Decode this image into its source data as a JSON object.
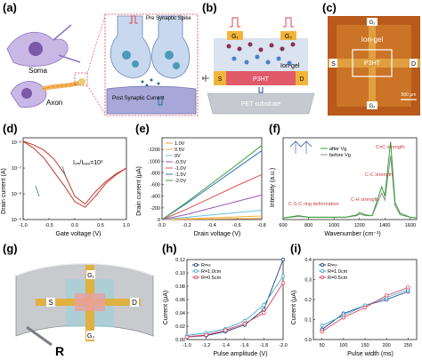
{
  "panels": {
    "a": {
      "letter": "(a)",
      "soma": "Soma",
      "axon": "Axon",
      "pre_synaptic_spike": "Pre Synaptic Spike",
      "post_synaptic_current": "Post Synaptic Current"
    },
    "b": {
      "letter": "(b)",
      "g1": "G₁",
      "g2": "G₂",
      "ion_gel": "Ion-gel",
      "s": "S",
      "d": "D",
      "p3ht": "P3HT",
      "substrate": "PET substrate"
    },
    "c": {
      "letter": "(c)",
      "g1": "G₁",
      "g2": "G₂",
      "ion_gel": "Ion-gel",
      "s": "S",
      "d": "D",
      "p3ht": "P3HT",
      "scale": "500 μm"
    },
    "g": {
      "letter": "(g)",
      "g1": "G₁",
      "g2": "G₂",
      "s": "S",
      "d": "D",
      "r": "R"
    }
  },
  "chart_data": [
    {
      "panel": "d",
      "letter": "(d)",
      "type": "line",
      "xlabel": "Gate voltage (V)",
      "ylabel": "Drain current (A)",
      "xlim": [
        -1.0,
        1.0
      ],
      "xticks": [
        "-1.0",
        "-0.5",
        "0.0",
        "0.5",
        "1.0"
      ],
      "yscale": "log",
      "ylim": [
        1e-09,
        1.5e-06
      ],
      "yticks": [
        "10⁻⁶",
        "10⁻⁷",
        "10⁻⁸",
        "10⁻⁹"
      ],
      "annotation": "Iₒₙ/Iₒₒₒ=10³",
      "series": [
        {
          "direction": "forward",
          "x": [
            -1.0,
            -0.8,
            -0.6,
            -0.4,
            -0.2,
            0.0,
            0.2,
            0.4,
            0.6,
            0.8,
            1.0
          ],
          "y": [
            1.1e-06,
            8e-07,
            5e-07,
            2.2e-07,
            6e-08,
            8e-09,
            4e-09,
            1.2e-08,
            3e-08,
            6e-08,
            1e-07
          ]
        },
        {
          "direction": "reverse",
          "x": [
            -1.0,
            -0.8,
            -0.6,
            -0.4,
            -0.2,
            0.0,
            0.2,
            0.4,
            0.6,
            0.8,
            1.0
          ],
          "y": [
            1.1e-06,
            6e-07,
            2.5e-07,
            7e-08,
            2e-08,
            5e-09,
            3e-09,
            8e-09,
            2.5e-08,
            5.5e-08,
            1e-07
          ]
        }
      ]
    },
    {
      "panel": "e",
      "letter": "(e)",
      "type": "line",
      "xlabel": "Drain voltage (V)",
      "ylabel": "Drain current (μA)",
      "xlim": [
        0.0,
        -0.8
      ],
      "xticks": [
        "0.0",
        "-0.2",
        "-0.4",
        "-0.6",
        "-0.8"
      ],
      "ylim": [
        0,
        -1400
      ],
      "yticks": [
        "0",
        "-200",
        "-400",
        "-600",
        "-800",
        "-1000",
        "-1200"
      ],
      "series": [
        {
          "name": "1.0V",
          "color": "#e8a030",
          "x": [
            0,
            -0.2,
            -0.4,
            -0.6,
            -0.8
          ],
          "y": [
            0,
            -5,
            -10,
            -15,
            -20
          ]
        },
        {
          "name": "0.5V",
          "color": "#f0b040",
          "x": [
            0,
            -0.2,
            -0.4,
            -0.6,
            -0.8
          ],
          "y": [
            0,
            -15,
            -30,
            -45,
            -60
          ]
        },
        {
          "name": "0V",
          "color": "#6ac0e0",
          "x": [
            0,
            -0.2,
            -0.4,
            -0.6,
            -0.8
          ],
          "y": [
            0,
            -40,
            -80,
            -120,
            -160
          ]
        },
        {
          "name": "-0.5V",
          "color": "#9b59b6",
          "x": [
            0,
            -0.2,
            -0.4,
            -0.6,
            -0.8
          ],
          "y": [
            0,
            -90,
            -200,
            -310,
            -420
          ]
        },
        {
          "name": "-1.0V",
          "color": "#e05050",
          "x": [
            0,
            -0.2,
            -0.4,
            -0.6,
            -0.8
          ],
          "y": [
            0,
            -180,
            -380,
            -580,
            -770
          ]
        },
        {
          "name": "-1.5V",
          "color": "#3070c0",
          "x": [
            0,
            -0.2,
            -0.4,
            -0.6,
            -0.8
          ],
          "y": [
            0,
            -280,
            -580,
            -880,
            -1180
          ]
        },
        {
          "name": "-2.0V",
          "color": "#40a040",
          "x": [
            0,
            -0.2,
            -0.4,
            -0.6,
            -0.8
          ],
          "y": [
            0,
            -300,
            -620,
            -940,
            -1270
          ]
        }
      ]
    },
    {
      "panel": "f",
      "letter": "(f)",
      "type": "line",
      "xlabel": "Wavenumber (cm⁻¹)",
      "ylabel": "Intensity (a.u.)",
      "xlim": [
        600,
        1650
      ],
      "xticks": [
        "600",
        "800",
        "1000",
        "1200",
        "1400",
        "1600"
      ],
      "annotations": [
        "C=C strength",
        "C-C strength",
        "C-H strength",
        "C-S-C ring deformation"
      ],
      "series": [
        {
          "name": "after Vg",
          "color": "#30a030",
          "x": [
            600,
            720,
            800,
            900,
            1000,
            1090,
            1180,
            1200,
            1250,
            1300,
            1375,
            1400,
            1445,
            1480,
            1520,
            1600,
            1650
          ],
          "y": [
            0.02,
            0.05,
            0.03,
            0.03,
            0.03,
            0.03,
            0.06,
            0.09,
            0.06,
            0.05,
            0.42,
            0.3,
            1.0,
            0.22,
            0.08,
            0.03,
            0.02
          ]
        },
        {
          "name": "before Vg",
          "color": "#909090",
          "x": [
            600,
            720,
            800,
            900,
            1000,
            1090,
            1180,
            1200,
            1250,
            1300,
            1375,
            1400,
            1445,
            1480,
            1520,
            1600,
            1650
          ],
          "y": [
            0.02,
            0.04,
            0.03,
            0.03,
            0.03,
            0.03,
            0.05,
            0.07,
            0.05,
            0.05,
            0.34,
            0.25,
            0.82,
            0.18,
            0.06,
            0.03,
            0.02
          ]
        }
      ]
    },
    {
      "panel": "h",
      "letter": "(h)",
      "type": "line",
      "xlabel": "Pulse amplitude (V)",
      "ylabel": "Current (μA)",
      "xlim": [
        -1.0,
        -2.0
      ],
      "xticks": [
        "-1.0",
        "-1.2",
        "-1.4",
        "-1.6",
        "-1.8",
        "-2.0"
      ],
      "ylim": [
        0.0,
        0.12
      ],
      "yticks": [
        "0.00",
        "0.02",
        "0.04",
        "0.06",
        "0.08",
        "0.10",
        "0.12"
      ],
      "series": [
        {
          "name": "R=∞",
          "color": "#1a3a8a",
          "x": [
            -1.0,
            -1.2,
            -1.4,
            -1.6,
            -1.8,
            -2.0
          ],
          "y": [
            0.004,
            0.006,
            0.012,
            0.022,
            0.045,
            0.12
          ]
        },
        {
          "name": "R=1.0cm",
          "color": "#40a8c8",
          "x": [
            -1.0,
            -1.2,
            -1.4,
            -1.6,
            -1.8,
            -2.0
          ],
          "y": [
            0.006,
            0.01,
            0.016,
            0.028,
            0.052,
            0.095
          ]
        },
        {
          "name": "R=0.5cm",
          "color": "#e04050",
          "x": [
            -1.0,
            -1.2,
            -1.4,
            -1.6,
            -1.8,
            -2.0
          ],
          "y": [
            0.004,
            0.007,
            0.014,
            0.024,
            0.04,
            0.085
          ]
        }
      ]
    },
    {
      "panel": "i",
      "letter": "(i)",
      "type": "line",
      "xlabel": "Pulse width (ms)",
      "ylabel": "Current (μA)",
      "xlim": [
        30,
        270
      ],
      "xticks": [
        "50",
        "100",
        "150",
        "200",
        "250"
      ],
      "ylim": [
        0.0,
        0.4
      ],
      "yticks": [
        "0.0",
        "0.1",
        "0.2",
        "0.3",
        "0.4"
      ],
      "series": [
        {
          "name": "R=∞",
          "color": "#1a3a8a",
          "x": [
            50,
            100,
            150,
            200,
            250
          ],
          "y": [
            0.05,
            0.13,
            0.17,
            0.2,
            0.24
          ]
        },
        {
          "name": "R=1.0cm",
          "color": "#40a8c8",
          "x": [
            50,
            100,
            150,
            200,
            250
          ],
          "y": [
            0.07,
            0.12,
            0.17,
            0.21,
            0.25
          ]
        },
        {
          "name": "R=0.5cm",
          "color": "#e04050",
          "x": [
            50,
            100,
            150,
            200,
            250
          ],
          "y": [
            0.04,
            0.11,
            0.16,
            0.22,
            0.26
          ]
        }
      ]
    }
  ]
}
